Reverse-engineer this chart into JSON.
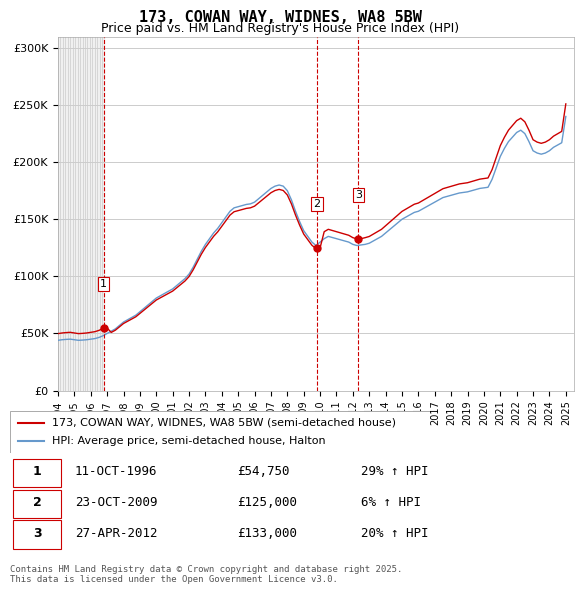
{
  "title": "173, COWAN WAY, WIDNES, WA8 5BW",
  "subtitle": "Price paid vs. HM Land Registry's House Price Index (HPI)",
  "ylim": [
    0,
    310000
  ],
  "yticks": [
    0,
    50000,
    100000,
    150000,
    200000,
    250000,
    300000
  ],
  "ytick_labels": [
    "£0",
    "£50K",
    "£100K",
    "£150K",
    "£200K",
    "£250K",
    "£300K"
  ],
  "sale_dates": [
    1996.79,
    2009.81,
    2012.33
  ],
  "sale_prices": [
    54750,
    125000,
    133000
  ],
  "sale_labels": [
    "1",
    "2",
    "3"
  ],
  "vline_color": "#cc0000",
  "sale_color": "#cc0000",
  "hpi_color": "#6699cc",
  "legend_label_red": "173, COWAN WAY, WIDNES, WA8 5BW (semi-detached house)",
  "legend_label_blue": "HPI: Average price, semi-detached house, Halton",
  "table_rows": [
    [
      "1",
      "11-OCT-1996",
      "£54,750",
      "29% ↑ HPI"
    ],
    [
      "2",
      "23-OCT-2009",
      "£125,000",
      "6% ↑ HPI"
    ],
    [
      "3",
      "27-APR-2012",
      "£133,000",
      "20% ↑ HPI"
    ]
  ],
  "footnote": "Contains HM Land Registry data © Crown copyright and database right 2025.\nThis data is licensed under the Open Government Licence v3.0.",
  "bg_hatch_color": "#e8e8e8",
  "grid_color": "#cccccc",
  "hpi_data": {
    "years": [
      1994.0,
      1994.25,
      1994.5,
      1994.75,
      1995.0,
      1995.25,
      1995.5,
      1995.75,
      1996.0,
      1996.25,
      1996.5,
      1996.75,
      1997.0,
      1997.25,
      1997.5,
      1997.75,
      1998.0,
      1998.25,
      1998.5,
      1998.75,
      1999.0,
      1999.25,
      1999.5,
      1999.75,
      2000.0,
      2000.25,
      2000.5,
      2000.75,
      2001.0,
      2001.25,
      2001.5,
      2001.75,
      2002.0,
      2002.25,
      2002.5,
      2002.75,
      2003.0,
      2003.25,
      2003.5,
      2003.75,
      2004.0,
      2004.25,
      2004.5,
      2004.75,
      2005.0,
      2005.25,
      2005.5,
      2005.75,
      2006.0,
      2006.25,
      2006.5,
      2006.75,
      2007.0,
      2007.25,
      2007.5,
      2007.75,
      2008.0,
      2008.25,
      2008.5,
      2008.75,
      2009.0,
      2009.25,
      2009.5,
      2009.75,
      2010.0,
      2010.25,
      2010.5,
      2010.75,
      2011.0,
      2011.25,
      2011.5,
      2011.75,
      2012.0,
      2012.25,
      2012.5,
      2012.75,
      2013.0,
      2013.25,
      2013.5,
      2013.75,
      2014.0,
      2014.25,
      2014.5,
      2014.75,
      2015.0,
      2015.25,
      2015.5,
      2015.75,
      2016.0,
      2016.25,
      2016.5,
      2016.75,
      2017.0,
      2017.25,
      2017.5,
      2017.75,
      2018.0,
      2018.25,
      2018.5,
      2018.75,
      2019.0,
      2019.25,
      2019.5,
      2019.75,
      2020.0,
      2020.25,
      2020.5,
      2020.75,
      2021.0,
      2021.25,
      2021.5,
      2021.75,
      2022.0,
      2022.25,
      2022.5,
      2022.75,
      2023.0,
      2023.25,
      2023.5,
      2023.75,
      2024.0,
      2024.25,
      2024.5,
      2024.75,
      2025.0
    ],
    "values": [
      44000,
      44500,
      44800,
      45000,
      44500,
      44000,
      44200,
      44500,
      45000,
      45500,
      46500,
      48000,
      50000,
      52000,
      54000,
      57000,
      60000,
      62000,
      64000,
      66000,
      69000,
      72000,
      75000,
      78000,
      81000,
      83000,
      85000,
      87000,
      89000,
      92000,
      95000,
      98000,
      102000,
      108000,
      115000,
      122000,
      128000,
      133000,
      138000,
      142000,
      147000,
      152000,
      157000,
      160000,
      161000,
      162000,
      163000,
      163500,
      165000,
      168000,
      171000,
      174000,
      177000,
      179000,
      180000,
      179000,
      175000,
      167000,
      157000,
      148000,
      140000,
      135000,
      130000,
      127000,
      130000,
      133000,
      135000,
      134000,
      133000,
      132000,
      131000,
      130000,
      128000,
      127000,
      127500,
      128000,
      129000,
      131000,
      133000,
      135000,
      138000,
      141000,
      144000,
      147000,
      150000,
      152000,
      154000,
      156000,
      157000,
      159000,
      161000,
      163000,
      165000,
      167000,
      169000,
      170000,
      171000,
      172000,
      173000,
      173500,
      174000,
      175000,
      176000,
      177000,
      177500,
      178000,
      185000,
      195000,
      205000,
      212000,
      218000,
      222000,
      226000,
      228000,
      225000,
      218000,
      210000,
      208000,
      207000,
      208000,
      210000,
      213000,
      215000,
      217000,
      240000
    ],
    "red_values": [
      null,
      null,
      null,
      null,
      null,
      null,
      null,
      null,
      null,
      null,
      null,
      null,
      null,
      null,
      null,
      null,
      null,
      null,
      null,
      null,
      null,
      null,
      null,
      null,
      null,
      null,
      null,
      null,
      null,
      null,
      null,
      null,
      null,
      null,
      null,
      null,
      null,
      null,
      null,
      null,
      null,
      null,
      null,
      null,
      null,
      null,
      null,
      null,
      null,
      null,
      null,
      null,
      null,
      null,
      null,
      null,
      null,
      null,
      null,
      null,
      null,
      null,
      null,
      null,
      null,
      null,
      null,
      null,
      null,
      null,
      null,
      null,
      null,
      null,
      null,
      null,
      null,
      null,
      null,
      null,
      null,
      null,
      null,
      null,
      null,
      null,
      null,
      null,
      null,
      null,
      null,
      null,
      null,
      null,
      null,
      null,
      null,
      null,
      null,
      null,
      null,
      null,
      null,
      null,
      null,
      null,
      null,
      null,
      null,
      null,
      null,
      null,
      null,
      null,
      null,
      null,
      null,
      null,
      null,
      null,
      null,
      null,
      null,
      null,
      null
    ]
  }
}
